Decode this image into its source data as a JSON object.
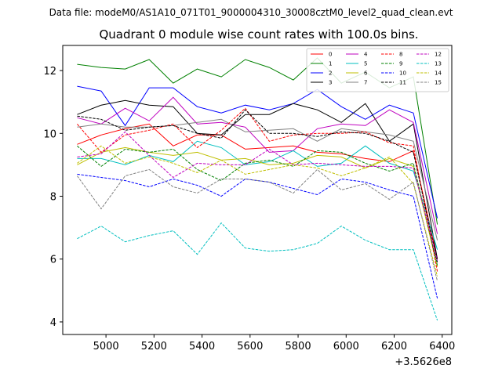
{
  "chart_data": {
    "type": "line",
    "suptitle": "Data file: modeM0/AS1A10_071T01_9000004310_30008cztM0_level2_quad_clean.evt",
    "title": "Quadrant 0 module wise count rates with 100.0s bins.",
    "xlabel": "",
    "ylabel": "",
    "x_offset_label": "+3.5626e8",
    "xlim": [
      4820,
      6440
    ],
    "ylim": [
      3.6,
      12.8
    ],
    "xticks": [
      5000,
      5200,
      5400,
      5600,
      5800,
      6000,
      6200,
      6400
    ],
    "yticks": [
      4,
      6,
      8,
      10,
      12
    ],
    "x": [
      4880,
      4980,
      5080,
      5180,
      5280,
      5380,
      5480,
      5580,
      5680,
      5780,
      5880,
      5980,
      6080,
      6180,
      6280,
      6380
    ],
    "legend_position": "upper right",
    "series": [
      {
        "name": "0",
        "color": "#ff0000",
        "dash": "solid",
        "values": [
          9.65,
          9.95,
          10.15,
          10.3,
          9.6,
          9.95,
          9.95,
          9.5,
          9.55,
          9.6,
          9.4,
          9.35,
          9.2,
          9.1,
          9.45,
          6.0
        ]
      },
      {
        "name": "1",
        "color": "#008000",
        "dash": "solid",
        "values": [
          12.2,
          12.1,
          12.05,
          12.35,
          11.6,
          12.05,
          11.8,
          12.35,
          12.1,
          11.7,
          12.4,
          11.6,
          11.95,
          11.45,
          11.8,
          7.1
        ]
      },
      {
        "name": "2",
        "color": "#0000ff",
        "dash": "solid",
        "values": [
          11.5,
          11.35,
          10.25,
          11.45,
          11.45,
          10.85,
          10.65,
          10.9,
          10.75,
          10.95,
          11.4,
          10.85,
          10.45,
          10.9,
          10.65,
          7.3
        ]
      },
      {
        "name": "3",
        "color": "#000000",
        "dash": "solid",
        "values": [
          10.6,
          10.9,
          11.05,
          10.9,
          10.85,
          10.0,
          9.95,
          10.6,
          10.6,
          10.95,
          10.75,
          10.35,
          10.95,
          9.75,
          10.3,
          6.0
        ]
      },
      {
        "name": "4",
        "color": "#bf00bf",
        "dash": "solid",
        "values": [
          10.5,
          10.3,
          10.8,
          10.4,
          11.15,
          10.3,
          10.35,
          10.2,
          9.4,
          9.45,
          10.15,
          10.3,
          10.25,
          10.75,
          10.35,
          6.8
        ]
      },
      {
        "name": "5",
        "color": "#00bfbf",
        "dash": "solid",
        "values": [
          9.2,
          9.2,
          9.0,
          9.3,
          9.1,
          9.75,
          9.55,
          9.0,
          9.1,
          9.45,
          8.95,
          9.05,
          9.6,
          9.05,
          8.8,
          6.3
        ]
      },
      {
        "name": "6",
        "color": "#bfbf00",
        "dash": "solid",
        "values": [
          9.0,
          9.4,
          9.55,
          9.4,
          9.3,
          9.4,
          9.15,
          9.2,
          9.0,
          9.05,
          9.3,
          9.25,
          8.9,
          9.2,
          8.95,
          5.75
        ]
      },
      {
        "name": "7",
        "color": "#808080",
        "dash": "solid",
        "values": [
          10.2,
          10.3,
          10.2,
          10.2,
          10.25,
          10.35,
          10.45,
          10.05,
          10.1,
          10.15,
          9.75,
          10.15,
          10.05,
          9.95,
          9.75,
          6.6
        ]
      },
      {
        "name": "8",
        "color": "#ff0000",
        "dash": "dashed",
        "values": [
          10.3,
          9.4,
          9.95,
          10.1,
          10.3,
          9.55,
          10.1,
          10.8,
          9.75,
          9.95,
          10.0,
          10.0,
          10.05,
          9.7,
          9.6,
          5.6
        ]
      },
      {
        "name": "9",
        "color": "#008000",
        "dash": "dashed",
        "values": [
          9.6,
          8.95,
          9.5,
          9.4,
          9.5,
          8.85,
          8.5,
          9.05,
          9.15,
          8.95,
          9.45,
          9.4,
          9.05,
          8.8,
          9.05,
          5.8
        ]
      },
      {
        "name": "10",
        "color": "#0000ff",
        "dash": "dashed",
        "values": [
          8.7,
          8.6,
          8.5,
          8.3,
          8.55,
          8.35,
          8.0,
          8.55,
          8.45,
          8.25,
          8.05,
          8.55,
          8.45,
          8.2,
          8.0,
          4.75
        ]
      },
      {
        "name": "11",
        "color": "#000000",
        "dash": "dashed",
        "values": [
          10.55,
          10.45,
          10.1,
          10.2,
          10.25,
          10.0,
          9.85,
          10.75,
          10.0,
          10.0,
          9.9,
          10.05,
          10.0,
          9.75,
          9.4,
          5.9
        ]
      },
      {
        "name": "12",
        "color": "#bf00bf",
        "dash": "dashed",
        "values": [
          9.25,
          9.35,
          10.05,
          9.3,
          8.6,
          9.05,
          9.0,
          9.0,
          9.5,
          9.0,
          9.05,
          9.0,
          8.95,
          8.95,
          8.9,
          5.95
        ]
      },
      {
        "name": "13",
        "color": "#00bfbf",
        "dash": "dashed",
        "values": [
          6.65,
          7.05,
          6.55,
          6.75,
          6.9,
          6.15,
          7.15,
          6.35,
          6.25,
          6.3,
          6.5,
          7.05,
          6.6,
          6.3,
          6.3,
          4.05
        ]
      },
      {
        "name": "14",
        "color": "#bfbf00",
        "dash": "dashed",
        "values": [
          9.05,
          9.6,
          9.05,
          9.25,
          9.05,
          8.75,
          9.15,
          8.7,
          8.85,
          9.0,
          8.9,
          8.65,
          8.9,
          9.25,
          8.4,
          5.45
        ]
      },
      {
        "name": "15",
        "color": "#808080",
        "dash": "dashed",
        "values": [
          8.65,
          7.6,
          8.65,
          8.85,
          8.3,
          8.1,
          8.55,
          8.55,
          8.45,
          8.1,
          8.85,
          8.2,
          8.4,
          7.9,
          8.45,
          5.3
        ]
      }
    ]
  }
}
